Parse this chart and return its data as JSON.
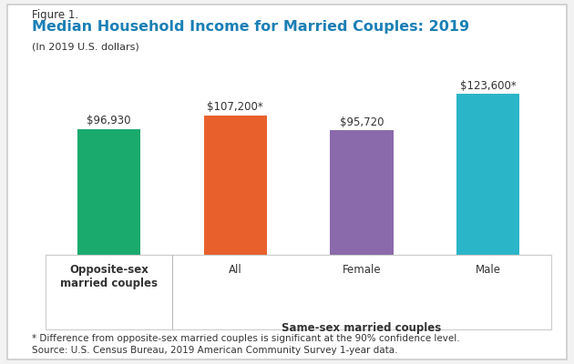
{
  "figure_label": "Figure 1.",
  "title": "Median Household Income for Married Couples: 2019",
  "subtitle": "(In 2019 U.S. dollars)",
  "categories": [
    "Opposite-sex\nmarried couples",
    "All",
    "Female",
    "Male"
  ],
  "values": [
    96930,
    107200,
    95720,
    123600
  ],
  "bar_labels": [
    "$96,930",
    "$107,200*",
    "$95,720",
    "$123,600*"
  ],
  "bar_colors": [
    "#1aaa6e",
    "#e8612c",
    "#8b6aac",
    "#2bb5c8"
  ],
  "xlabel_main": "Same-sex married couples",
  "footnote_line1": "* Difference from opposite-sex married couples is significant at the 90% confidence level.",
  "footnote_line2": "Source: U.S. Census Bureau, 2019 American Community Survey 1-year data.",
  "ylim": [
    0,
    140000
  ],
  "background_color": "#f2f2f2",
  "plot_bg_color": "#f2f2f2",
  "box_color": "#ffffff",
  "figure_label_color": "#333333",
  "title_color": "#1a7fb5",
  "subtitle_color": "#333333",
  "bar_label_fontsize": 8.5,
  "axis_label_fontsize": 8.5,
  "title_fontsize": 11.5,
  "footnote_fontsize": 7.5,
  "figure_label_fontsize": 8.5
}
